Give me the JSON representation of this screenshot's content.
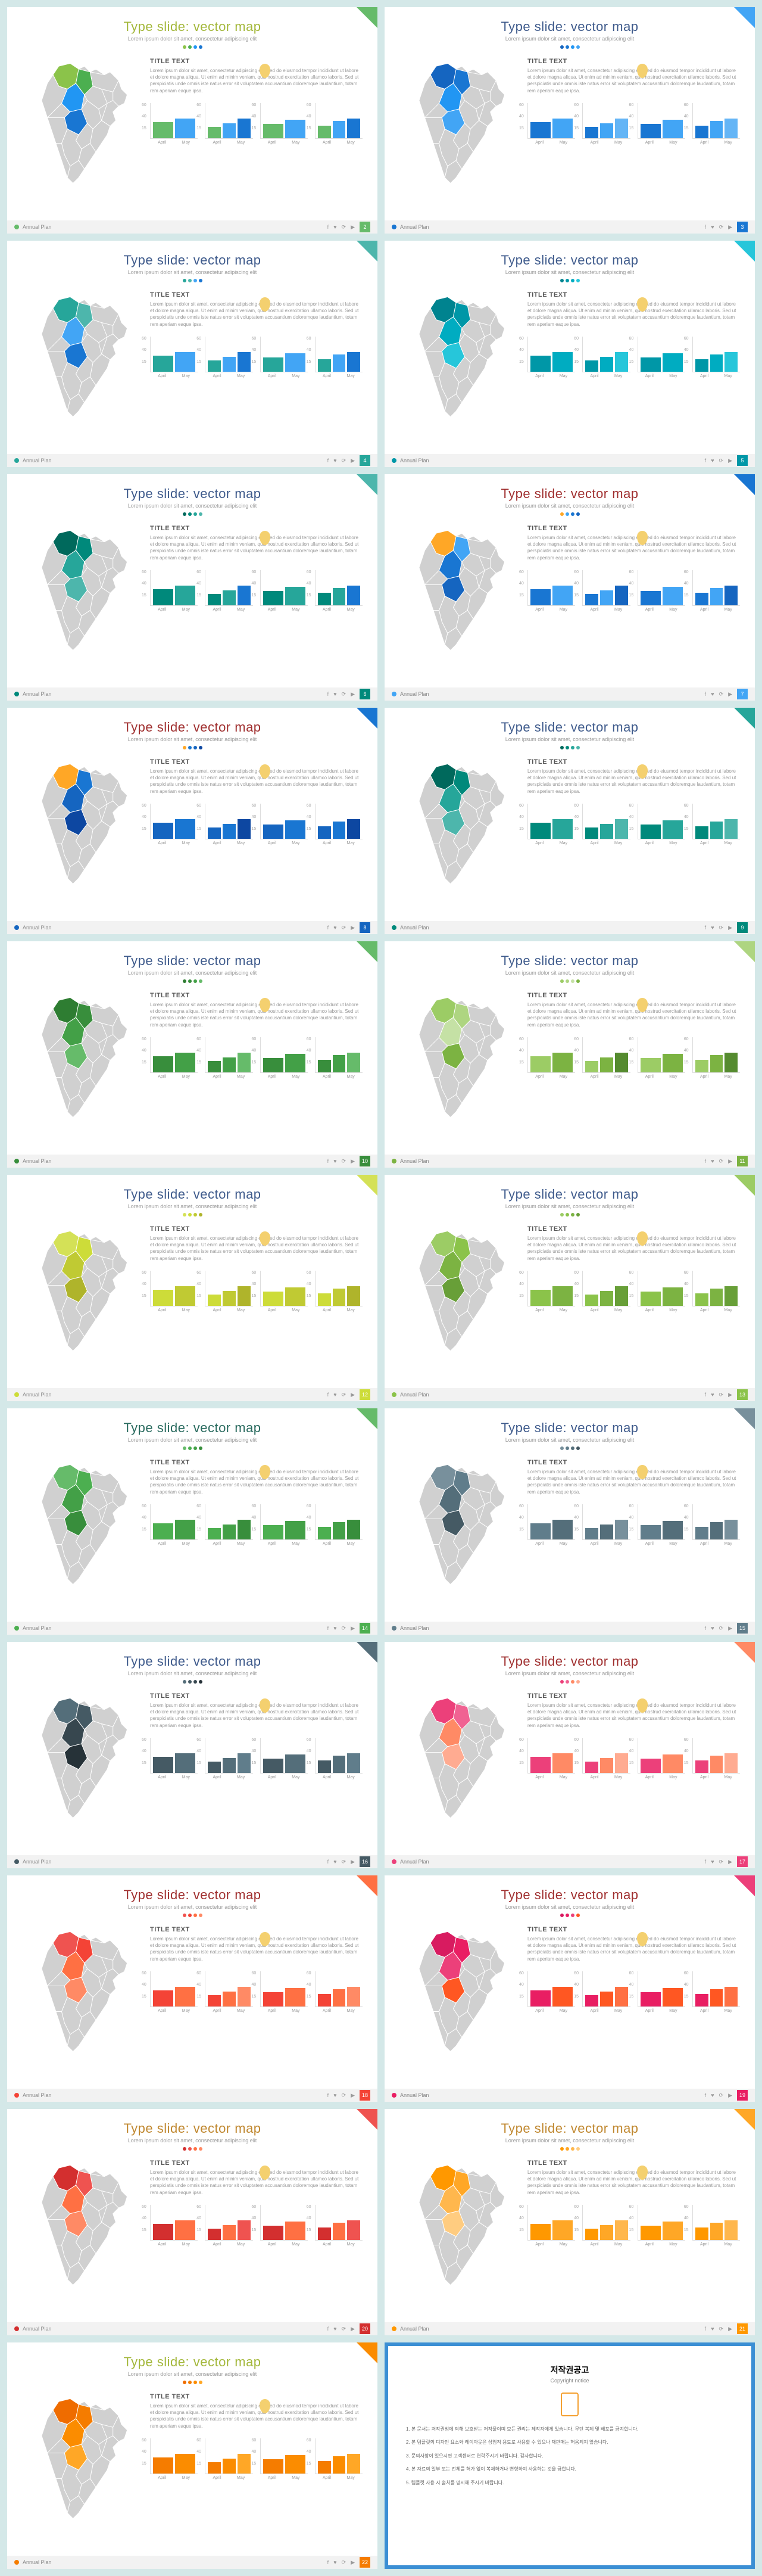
{
  "common": {
    "title": "Type slide: vector map",
    "subtitle": "Lorem ipsum dolor sit amet, consectetur adipiscing elit",
    "title_text": "TITLE TEXT",
    "body": "Lorem ipsum dolor sit amet, consectetur adipiscing elit, sed do eiusmod tempor incididunt ut labore et dolore magna aliqua. Ut enim ad minim veniam, quis nostrud exercitation ullamco laboris. Sed ut perspiciatis unde omnis iste natus error sit voluptatem accusantium doloremque laudantium, totam rem aperiam eaque ipsa.",
    "footer_label": "Annual Plan",
    "chart_ylabels": [
      "60",
      "40",
      "15"
    ],
    "chart_xlabels": [
      "April",
      "May"
    ],
    "bar_values": [
      [
        45,
        55
      ],
      [
        32,
        42,
        55
      ],
      [
        40,
        52
      ],
      [
        35,
        48,
        56
      ]
    ]
  },
  "copyright": {
    "title": "저작권공고",
    "subtitle": "Copyright notice",
    "items": [
      "본 문서는 저작권법에 의해 보호받는 저작물이며 모든 권리는 제작자에게 있습니다. 무단 복제 및 배포를 금지합니다.",
      "본 템플릿의 디자인 요소와 레이아웃은 상업적 용도로 사용할 수 있으나 재판매는 허용되지 않습니다.",
      "문의사항이 있으시면 고객센터로 연락주시기 바랍니다. 감사합니다.",
      "본 자료의 일부 또는 전체를 허가 없이 복제하거나 변형하여 사용하는 것을 금합니다.",
      "템플릿 사용 시 출처를 명시해 주시기 바랍니다."
    ]
  },
  "slides": [
    {
      "title_color": "#a4b83c",
      "dots": [
        "#8bc34a",
        "#4caf50",
        "#2196f3",
        "#1976d2"
      ],
      "map": [
        "#8bc34a",
        "#4caf50",
        "#2196f3",
        "#1976d2"
      ],
      "bars": [
        "#66bb6a",
        "#42a5f5",
        "#1976d2"
      ],
      "bullet": "#66bb6a",
      "page": "2",
      "corner": "#66bb6a"
    },
    {
      "title_color": "#3f5b8c",
      "dots": [
        "#1565c0",
        "#1976d2",
        "#2196f3",
        "#42a5f5"
      ],
      "map": [
        "#1565c0",
        "#1976d2",
        "#2196f3",
        "#42a5f5"
      ],
      "bars": [
        "#1976d2",
        "#42a5f5",
        "#64b5f6"
      ],
      "bullet": "#1976d2",
      "page": "3",
      "corner": "#42a5f5"
    },
    {
      "title_color": "#3f5b8c",
      "dots": [
        "#26a69a",
        "#4db6ac",
        "#42a5f5",
        "#1976d2"
      ],
      "map": [
        "#26a69a",
        "#4db6ac",
        "#42a5f5",
        "#1976d2"
      ],
      "bars": [
        "#26a69a",
        "#42a5f5",
        "#1976d2"
      ],
      "bullet": "#26a69a",
      "page": "4",
      "corner": "#4db6ac"
    },
    {
      "title_color": "#3f5b8c",
      "dots": [
        "#00838f",
        "#0097a7",
        "#00acc1",
        "#26c6da"
      ],
      "map": [
        "#00838f",
        "#0097a7",
        "#00acc1",
        "#26c6da"
      ],
      "bars": [
        "#0097a7",
        "#00acc1",
        "#26c6da"
      ],
      "bullet": "#0097a7",
      "page": "5",
      "corner": "#26c6da"
    },
    {
      "title_color": "#3f5b8c",
      "dots": [
        "#00695c",
        "#00897b",
        "#26a69a",
        "#4db6ac"
      ],
      "map": [
        "#00695c",
        "#00897b",
        "#26a69a",
        "#4db6ac"
      ],
      "bars": [
        "#00897b",
        "#26a69a",
        "#1976d2"
      ],
      "bullet": "#00897b",
      "page": "6",
      "corner": "#4db6ac"
    },
    {
      "title_color": "#a03030",
      "dots": [
        "#ffa726",
        "#42a5f5",
        "#1976d2",
        "#1565c0"
      ],
      "map": [
        "#ffa726",
        "#42a5f5",
        "#1976d2",
        "#1565c0"
      ],
      "bars": [
        "#1976d2",
        "#42a5f5",
        "#1565c0"
      ],
      "bullet": "#42a5f5",
      "page": "7",
      "corner": "#1976d2"
    },
    {
      "title_color": "#a03030",
      "dots": [
        "#ffa726",
        "#1976d2",
        "#1565c0",
        "#0d47a1"
      ],
      "map": [
        "#ffa726",
        "#1976d2",
        "#1565c0",
        "#0d47a1"
      ],
      "bars": [
        "#1565c0",
        "#1976d2",
        "#0d47a1"
      ],
      "bullet": "#1565c0",
      "page": "8",
      "corner": "#1976d2"
    },
    {
      "title_color": "#3f5b8c",
      "dots": [
        "#00695c",
        "#00897b",
        "#26a69a",
        "#4db6ac"
      ],
      "map": [
        "#00695c",
        "#00897b",
        "#26a69a",
        "#4db6ac"
      ],
      "bars": [
        "#00897b",
        "#26a69a",
        "#4db6ac"
      ],
      "bullet": "#00897b",
      "page": "9",
      "corner": "#26a69a"
    },
    {
      "title_color": "#3f5b8c",
      "dots": [
        "#2e7d32",
        "#388e3c",
        "#43a047",
        "#66bb6a"
      ],
      "map": [
        "#2e7d32",
        "#388e3c",
        "#43a047",
        "#66bb6a"
      ],
      "bars": [
        "#388e3c",
        "#43a047",
        "#66bb6a"
      ],
      "bullet": "#388e3c",
      "page": "10",
      "corner": "#66bb6a"
    },
    {
      "title_color": "#3f5b8c",
      "dots": [
        "#9ccc65",
        "#aed581",
        "#c5e1a5",
        "#7cb342"
      ],
      "map": [
        "#9ccc65",
        "#aed581",
        "#c5e1a5",
        "#7cb342"
      ],
      "bars": [
        "#9ccc65",
        "#7cb342",
        "#558b2f"
      ],
      "bullet": "#7cb342",
      "page": "11",
      "corner": "#aed581"
    },
    {
      "title_color": "#3f5b8c",
      "dots": [
        "#d4e157",
        "#cddc39",
        "#c0ca33",
        "#afb42b"
      ],
      "map": [
        "#d4e157",
        "#cddc39",
        "#c0ca33",
        "#afb42b"
      ],
      "bars": [
        "#cddc39",
        "#c0ca33",
        "#afb42b"
      ],
      "bullet": "#cddc39",
      "page": "12",
      "corner": "#d4e157"
    },
    {
      "title_color": "#3f5b8c",
      "dots": [
        "#9ccc65",
        "#8bc34a",
        "#7cb342",
        "#689f38"
      ],
      "map": [
        "#9ccc65",
        "#8bc34a",
        "#7cb342",
        "#689f38"
      ],
      "bars": [
        "#8bc34a",
        "#7cb342",
        "#689f38"
      ],
      "bullet": "#8bc34a",
      "page": "13",
      "corner": "#9ccc65"
    },
    {
      "title_color": "#2a6b5f",
      "dots": [
        "#66bb6a",
        "#4caf50",
        "#43a047",
        "#388e3c"
      ],
      "map": [
        "#66bb6a",
        "#4caf50",
        "#43a047",
        "#388e3c"
      ],
      "bars": [
        "#4caf50",
        "#43a047",
        "#388e3c"
      ],
      "bullet": "#4caf50",
      "page": "14",
      "corner": "#66bb6a"
    },
    {
      "title_color": "#3f5b8c",
      "dots": [
        "#78909c",
        "#607d8b",
        "#546e7a",
        "#455a64"
      ],
      "map": [
        "#78909c",
        "#607d8b",
        "#546e7a",
        "#455a64"
      ],
      "bars": [
        "#607d8b",
        "#546e7a",
        "#78909c"
      ],
      "bullet": "#607d8b",
      "page": "15",
      "corner": "#78909c"
    },
    {
      "title_color": "#3f5b8c",
      "dots": [
        "#546e7a",
        "#455a64",
        "#37474f",
        "#263238"
      ],
      "map": [
        "#546e7a",
        "#455a64",
        "#37474f",
        "#263238"
      ],
      "bars": [
        "#455a64",
        "#546e7a",
        "#607d8b"
      ],
      "bullet": "#455a64",
      "page": "16",
      "corner": "#546e7a"
    },
    {
      "title_color": "#a03030",
      "dots": [
        "#ec407a",
        "#f06292",
        "#ff8a65",
        "#ffab91"
      ],
      "map": [
        "#ec407a",
        "#f06292",
        "#ff8a65",
        "#ffab91"
      ],
      "bars": [
        "#ec407a",
        "#ff8a65",
        "#ffab91"
      ],
      "bullet": "#ec407a",
      "page": "17",
      "corner": "#ff8a65"
    },
    {
      "title_color": "#a03030",
      "dots": [
        "#ef5350",
        "#f44336",
        "#ff7043",
        "#ff8a65"
      ],
      "map": [
        "#ef5350",
        "#f44336",
        "#ff7043",
        "#ff8a65"
      ],
      "bars": [
        "#f44336",
        "#ff7043",
        "#ff8a65"
      ],
      "bullet": "#f44336",
      "page": "18",
      "corner": "#ff7043"
    },
    {
      "title_color": "#a03030",
      "dots": [
        "#d81b60",
        "#e91e63",
        "#ec407a",
        "#ff5722"
      ],
      "map": [
        "#d81b60",
        "#e91e63",
        "#ec407a",
        "#ff5722"
      ],
      "bars": [
        "#e91e63",
        "#ff5722",
        "#ff7043"
      ],
      "bullet": "#e91e63",
      "page": "19",
      "corner": "#ec407a"
    },
    {
      "title_color": "#c08830",
      "dots": [
        "#d32f2f",
        "#ef5350",
        "#ff7043",
        "#ff8a65"
      ],
      "map": [
        "#d32f2f",
        "#ef5350",
        "#ff7043",
        "#ff8a65"
      ],
      "bars": [
        "#d32f2f",
        "#ff7043",
        "#ef5350"
      ],
      "bullet": "#d32f2f",
      "page": "20",
      "corner": "#ef5350"
    },
    {
      "title_color": "#c08830",
      "dots": [
        "#ff9800",
        "#ffa726",
        "#ffb74d",
        "#ffcc80"
      ],
      "map": [
        "#ff9800",
        "#ffa726",
        "#ffb74d",
        "#ffcc80"
      ],
      "bars": [
        "#ff9800",
        "#ffa726",
        "#ffb74d"
      ],
      "bullet": "#ff9800",
      "page": "21",
      "corner": "#ffa726"
    },
    {
      "title_color": "#a4b83c",
      "dots": [
        "#ef6c00",
        "#f57c00",
        "#fb8c00",
        "#ffa726"
      ],
      "map": [
        "#ef6c00",
        "#f57c00",
        "#fb8c00",
        "#ffa726"
      ],
      "bars": [
        "#f57c00",
        "#fb8c00",
        "#ffa726"
      ],
      "bullet": "#f57c00",
      "page": "22",
      "corner": "#fb8c00"
    }
  ]
}
